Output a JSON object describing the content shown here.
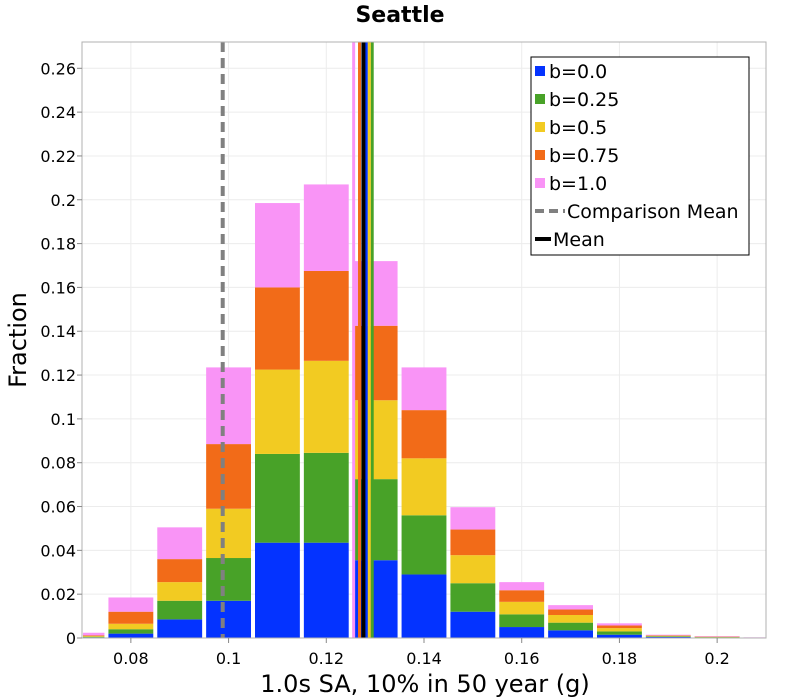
{
  "chart_data": {
    "type": "bar",
    "stacked": true,
    "title": "Seattle",
    "xlabel": "1.0s SA, 10% in 50 year (g)",
    "ylabel": "Fraction",
    "xlim": [
      0.07,
      0.21
    ],
    "ylim": [
      0,
      0.272
    ],
    "grid": true,
    "legend_position": "top-right",
    "x_ticks": [
      "0.08",
      "0.1",
      "0.12",
      "0.14",
      "0.16",
      "0.18",
      "0.2"
    ],
    "y_ticks": [
      "0",
      "0.02",
      "0.04",
      "0.06",
      "0.08",
      "0.1",
      "0.12",
      "0.14",
      "0.16",
      "0.18",
      "0.2",
      "0.22",
      "0.24",
      "0.26"
    ],
    "bin_centers": [
      0.07,
      0.08,
      0.09,
      0.1,
      0.11,
      0.12,
      0.13,
      0.14,
      0.15,
      0.16,
      0.17,
      0.18,
      0.19,
      0.2,
      0.21
    ],
    "bin_width": 0.01,
    "series": [
      {
        "name": "b=0.0",
        "color": "#0433ff",
        "values": [
          0.0003,
          0.002,
          0.0085,
          0.017,
          0.0435,
          0.0435,
          0.0355,
          0.029,
          0.012,
          0.005,
          0.0035,
          0.0015,
          0.0005,
          0.0002,
          0.0
        ]
      },
      {
        "name": "b=0.25",
        "color": "#48a228",
        "values": [
          0.0003,
          0.002,
          0.0085,
          0.0195,
          0.0405,
          0.041,
          0.037,
          0.027,
          0.013,
          0.0058,
          0.0035,
          0.0015,
          0.0003,
          0.0002,
          0.0
        ]
      },
      {
        "name": "b=0.5",
        "color": "#f2cb22",
        "values": [
          0.0003,
          0.0025,
          0.0085,
          0.0225,
          0.0385,
          0.042,
          0.036,
          0.026,
          0.0128,
          0.0057,
          0.0035,
          0.0015,
          0.0002,
          0.0002,
          0.0
        ]
      },
      {
        "name": "b=0.75",
        "color": "#f26b18",
        "values": [
          0.0003,
          0.0055,
          0.0105,
          0.0295,
          0.0375,
          0.041,
          0.034,
          0.022,
          0.0117,
          0.0053,
          0.0025,
          0.0012,
          0.0002,
          0.0001,
          0.0
        ]
      },
      {
        "name": "b=1.0",
        "color": "#f994f6",
        "values": [
          0.0012,
          0.0065,
          0.0145,
          0.035,
          0.0385,
          0.0395,
          0.0295,
          0.0195,
          0.0102,
          0.0037,
          0.002,
          0.001,
          0.0003,
          0.0001,
          0.0003
        ]
      }
    ],
    "mean_lines": [
      {
        "series": "b=0.0",
        "x": 0.1282,
        "color": "#0433ff"
      },
      {
        "series": "b=0.25",
        "x": 0.1294,
        "color": "#48a228"
      },
      {
        "series": "b=0.5",
        "x": 0.1288,
        "color": "#f2cb22"
      },
      {
        "series": "b=0.75",
        "x": 0.1268,
        "color": "#f26b18"
      },
      {
        "series": "b=1.0",
        "x": 0.1256,
        "color": "#f994f6"
      }
    ],
    "comparison_mean": {
      "label": "Comparison Mean",
      "x": 0.0988,
      "color": "#808080"
    },
    "mean": {
      "label": "Mean",
      "x": 0.1276,
      "color": "#000000"
    },
    "legend": [
      {
        "label": "b=0.0",
        "color": "#0433ff",
        "kind": "box"
      },
      {
        "label": "b=0.25",
        "color": "#48a228",
        "kind": "box"
      },
      {
        "label": "b=0.5",
        "color": "#f2cb22",
        "kind": "box"
      },
      {
        "label": "b=0.75",
        "color": "#f26b18",
        "kind": "box"
      },
      {
        "label": "b=1.0",
        "color": "#f994f6",
        "kind": "box"
      },
      {
        "label": "Comparison Mean",
        "color": "#808080",
        "kind": "dashed"
      },
      {
        "label": "Mean",
        "color": "#000000",
        "kind": "solid"
      }
    ]
  }
}
